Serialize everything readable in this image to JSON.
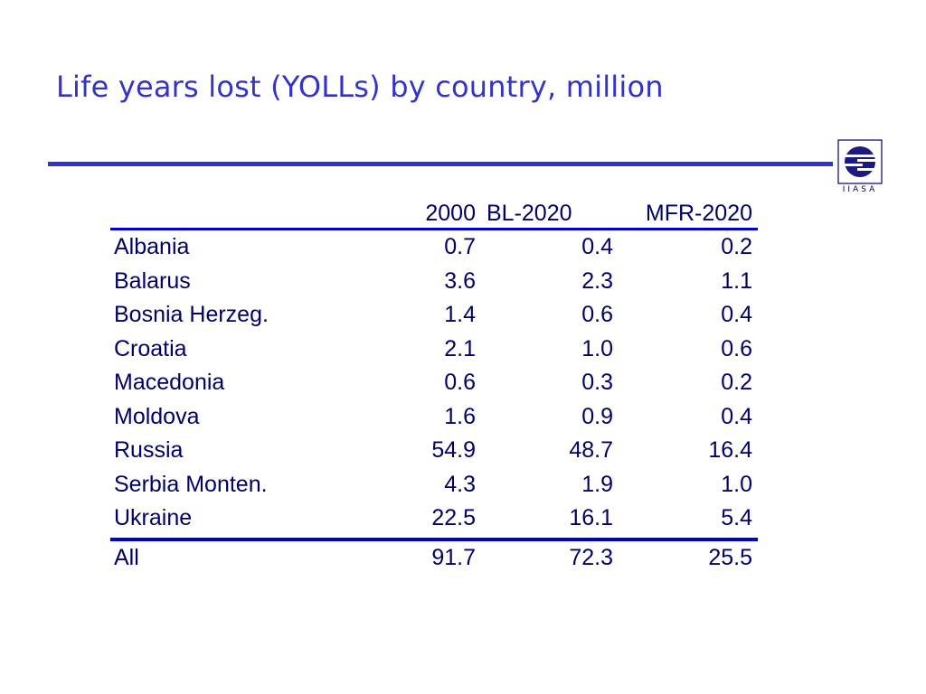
{
  "slide": {
    "title": "Life years lost (YOLLs) by country, million",
    "logo_text": "IIASA"
  },
  "table": {
    "headers": {
      "country": "",
      "y2000": "2000",
      "bl2020": "BL-2020",
      "mfr2020": "MFR-2020"
    },
    "rows": [
      {
        "country": "Albania",
        "y2000": "0.7",
        "bl2020": "0.4",
        "mfr2020": "0.2"
      },
      {
        "country": "Balarus",
        "y2000": "3.6",
        "bl2020": "2.3",
        "mfr2020": "1.1"
      },
      {
        "country": "Bosnia Herzeg.",
        "y2000": "1.4",
        "bl2020": "0.6",
        "mfr2020": "0.4"
      },
      {
        "country": "Croatia",
        "y2000": "2.1",
        "bl2020": "1.0",
        "mfr2020": "0.6"
      },
      {
        "country": "Macedonia",
        "y2000": "0.6",
        "bl2020": "0.3",
        "mfr2020": "0.2"
      },
      {
        "country": "Moldova",
        "y2000": "1.6",
        "bl2020": "0.9",
        "mfr2020": "0.4"
      },
      {
        "country": "Russia",
        "y2000": "54.9",
        "bl2020": "48.7",
        "mfr2020": "16.4"
      },
      {
        "country": "Serbia Monten.",
        "y2000": "4.3",
        "bl2020": "1.9",
        "mfr2020": "1.0"
      },
      {
        "country": "Ukraine",
        "y2000": "22.5",
        "bl2020": "16.1",
        "mfr2020": "5.4"
      }
    ],
    "total": {
      "country": "All",
      "y2000": "91.7",
      "bl2020": "72.3",
      "mfr2020": "25.5"
    }
  },
  "colors": {
    "title": "#3333cc",
    "rule": "#3333cc",
    "table_text": "#000066",
    "table_rule": "#0000cc"
  }
}
